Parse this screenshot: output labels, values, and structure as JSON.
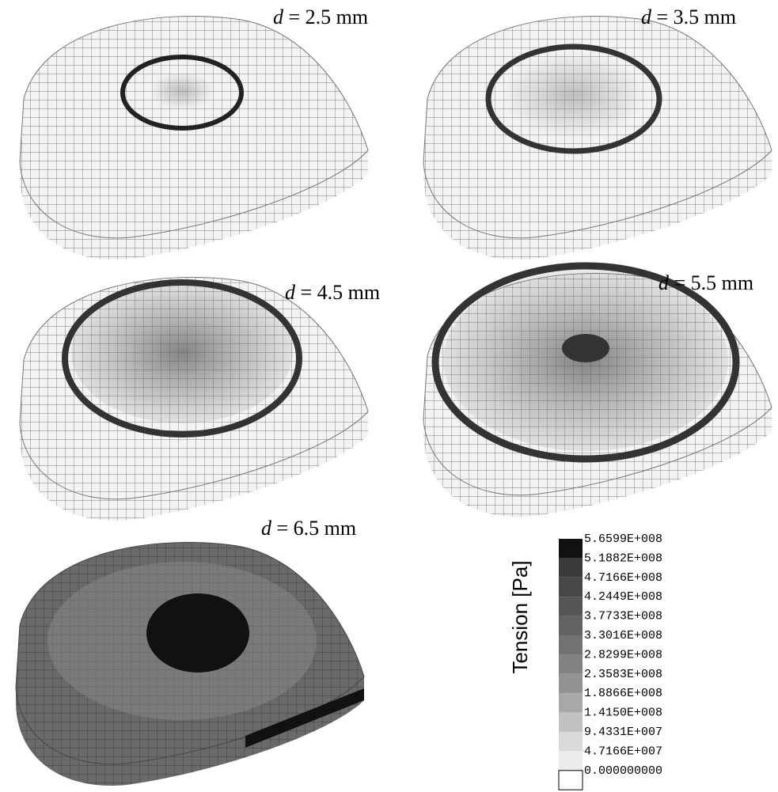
{
  "panels": [
    {
      "variable": "d",
      "label": "= 2.5 mm"
    },
    {
      "variable": "d",
      "label": "= 3.5 mm"
    },
    {
      "variable": "d",
      "label": "= 4.5 mm"
    },
    {
      "variable": "d",
      "label": "= 5.5 mm"
    },
    {
      "variable": "d",
      "label": "= 6.5 mm"
    }
  ],
  "legend": {
    "title": "Tension [Pa]",
    "levels": [
      "5.6599E+008",
      "5.1882E+008",
      "4.7166E+008",
      "4.2449E+008",
      "3.7733E+008",
      "3.3016E+008",
      "2.8299E+008",
      "2.3583E+008",
      "1.8866E+008",
      "1.4150E+008",
      "9.4331E+007",
      "4.7166E+007",
      "0.000000000"
    ]
  }
}
